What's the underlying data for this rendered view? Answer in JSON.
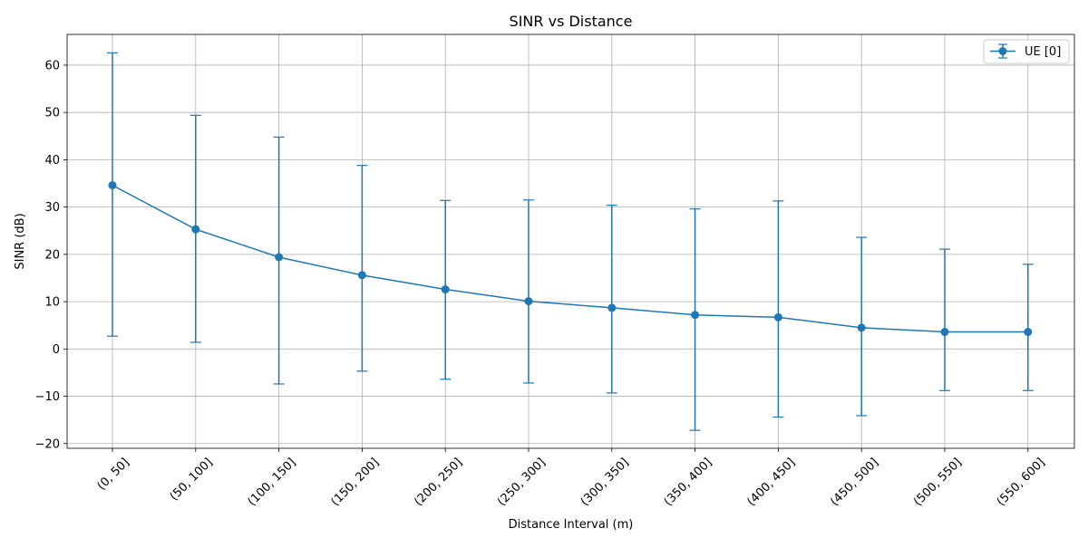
{
  "chart_data": {
    "type": "line",
    "title": "SINR vs Distance",
    "xlabel": "Distance Interval (m)",
    "ylabel": "SINR (dB)",
    "categories": [
      "(0, 50]",
      "(50, 100]",
      "(100, 150]",
      "(150, 200]",
      "(200, 250]",
      "(250, 300]",
      "(300, 350]",
      "(350, 400]",
      "(400, 450]",
      "(450, 500]",
      "(500, 550]",
      "(550, 600]"
    ],
    "ylim": [
      -21,
      66.5
    ],
    "yticks": [
      -20,
      -10,
      0,
      10,
      20,
      30,
      40,
      50,
      60
    ],
    "ytick_labels": [
      "−20",
      "−10",
      "0",
      "10",
      "20",
      "30",
      "40",
      "50",
      "60"
    ],
    "grid": true,
    "legend_position": "top-right",
    "series": [
      {
        "name": "UE [0]",
        "color": "#1f77b4",
        "marker": "circle",
        "error_bars": true,
        "values": [
          34.6,
          25.3,
          19.4,
          15.6,
          12.6,
          10.1,
          8.7,
          7.2,
          6.7,
          4.5,
          3.6,
          3.6
        ],
        "upper": [
          62.6,
          49.4,
          44.8,
          38.8,
          31.4,
          31.5,
          30.4,
          29.6,
          31.3,
          23.6,
          21.1,
          17.9
        ],
        "lower": [
          2.7,
          1.4,
          -7.4,
          -4.7,
          -6.4,
          -7.2,
          -9.3,
          -17.2,
          -14.4,
          -14.1,
          -8.8,
          -8.8
        ]
      }
    ]
  }
}
